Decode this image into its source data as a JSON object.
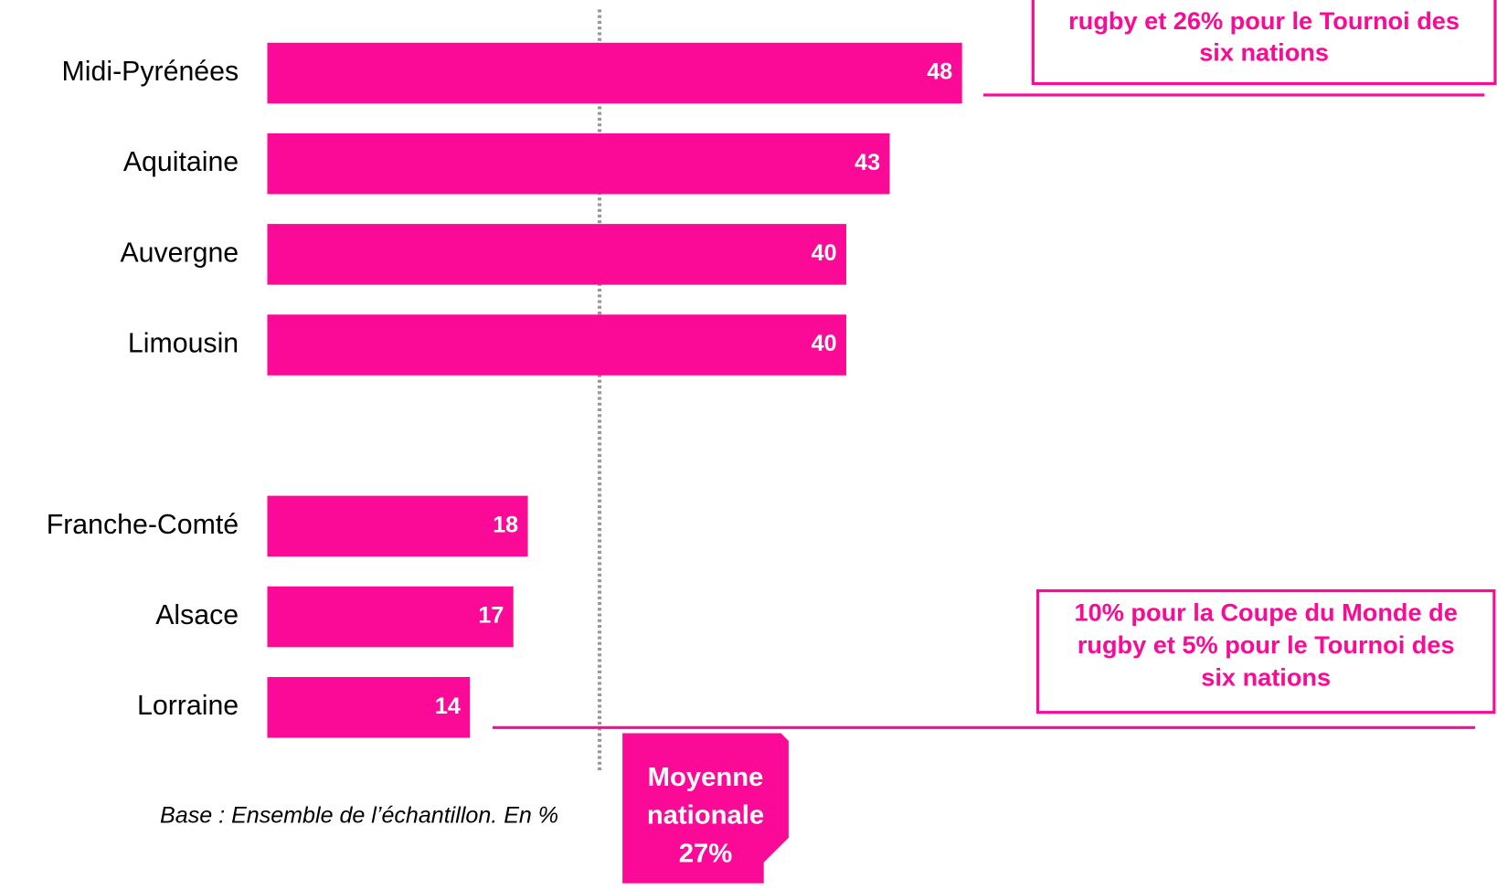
{
  "chart_data": {
    "type": "bar",
    "orientation": "horizontal",
    "categories": [
      "Midi-Pyrénées",
      "Aquitaine",
      "Auvergne",
      "Limousin",
      null,
      "Franche-Comté",
      "Alsace",
      "Lorraine"
    ],
    "values": [
      48,
      43,
      40,
      40,
      null,
      18,
      17,
      14
    ],
    "color": "#fa0a96",
    "xlim": [
      0,
      50
    ],
    "annotations": {
      "top_box": [
        "rugby et 26% pour le Tournoi des",
        "six nations"
      ],
      "bottom_box": [
        "10% pour la Coupe du Monde de",
        "rugby et 5% pour le Tournoi des",
        "six nations"
      ],
      "average": [
        "Moyenne",
        "nationale",
        "27%"
      ],
      "footnote": "Base : Ensemble de l’échantillon. En %"
    }
  }
}
